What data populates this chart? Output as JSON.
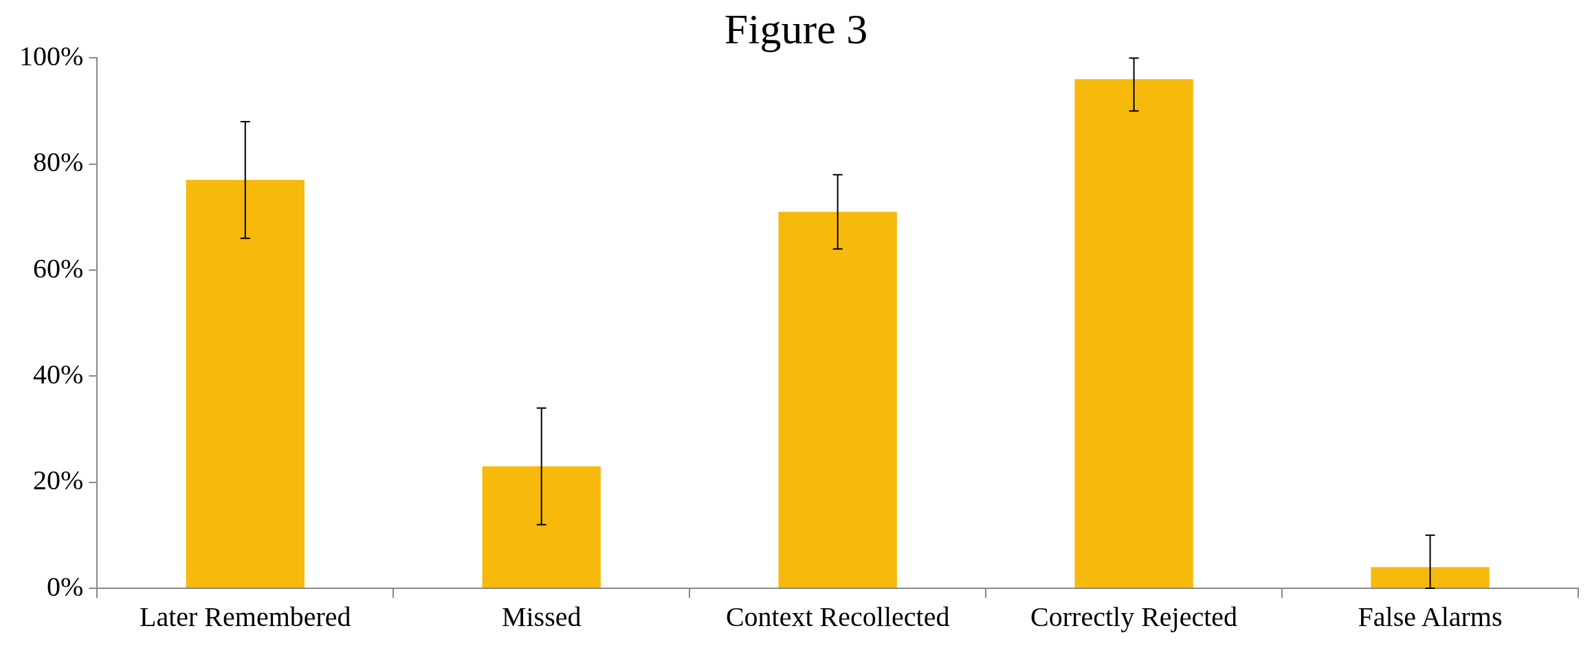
{
  "chart_data": {
    "type": "bar",
    "title": "Figure 3",
    "categories": [
      "Later Remembered",
      "Missed",
      "Context Recollected",
      "Correctly Rejected",
      "False Alarms"
    ],
    "values": [
      77,
      23,
      71,
      96,
      4
    ],
    "errors": [
      [
        66,
        88
      ],
      [
        12,
        34
      ],
      [
        64,
        78
      ],
      [
        90,
        100
      ],
      [
        0,
        10
      ]
    ],
    "color": "#f7b90c",
    "ylim": [
      0,
      100
    ],
    "yticks": [
      {
        "value": 0,
        "label": "0%"
      },
      {
        "value": 20,
        "label": "20%"
      },
      {
        "value": 40,
        "label": "40%"
      },
      {
        "value": 60,
        "label": "60%"
      },
      {
        "value": 80,
        "label": "80%"
      },
      {
        "value": 100,
        "label": "100%"
      }
    ],
    "grid": false,
    "legend": false
  }
}
